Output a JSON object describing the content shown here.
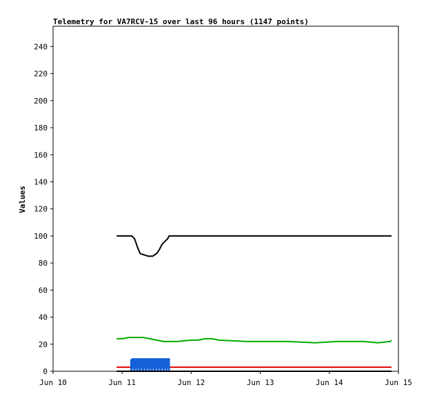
{
  "chart_data": {
    "type": "line",
    "title": "Telemetry for VA7RCV-15 over last 96 hours (1147 points)",
    "xlabel": "",
    "ylabel": "Values",
    "x_tick_labels": [
      "Jun 10",
      "Jun 11",
      "Jun 12",
      "Jun 13",
      "Jun 14",
      "Jun 15"
    ],
    "x_units": "days since Jun 10",
    "xlim": [
      0,
      5
    ],
    "ylim": [
      0,
      255
    ],
    "y_ticks": [
      0,
      20,
      40,
      60,
      80,
      100,
      120,
      140,
      160,
      180,
      200,
      220,
      240
    ],
    "grid": false,
    "legend": "none",
    "series": [
      {
        "color": "#000000",
        "style": "line",
        "x": [
          0.92,
          1.14,
          1.18,
          1.22,
          1.26,
          1.32,
          1.38,
          1.44,
          1.5,
          1.54,
          1.58,
          1.62,
          1.66,
          1.68,
          1.7,
          4.9
        ],
        "values": [
          100,
          100,
          98,
          92,
          87,
          86,
          85,
          85,
          87,
          90,
          94,
          96,
          98,
          100,
          100,
          100
        ]
      },
      {
        "color": "#00aa00",
        "style": "line",
        "x": [
          0.92,
          1.0,
          1.1,
          1.3,
          1.4,
          1.5,
          1.6,
          1.8,
          2.0,
          2.1,
          2.2,
          2.3,
          2.4,
          2.8,
          3.1,
          3.4,
          3.8,
          4.1,
          4.5,
          4.7,
          4.88,
          4.9
        ],
        "values": [
          24,
          24,
          25,
          25,
          24,
          23,
          22,
          22,
          23,
          23,
          24,
          24,
          23,
          22,
          22,
          22,
          21,
          22,
          22,
          21,
          22,
          23
        ]
      },
      {
        "color": "#dd0000",
        "style": "line",
        "x": [
          0.92,
          4.9
        ],
        "values": [
          3,
          3
        ]
      },
      {
        "color": "#1560d8",
        "style": "band",
        "x": [
          1.13,
          1.68
        ],
        "values": [
          0,
          9
        ]
      },
      {
        "color": "#000000",
        "style": "line",
        "x": [
          0.92,
          4.9
        ],
        "values": [
          0,
          0
        ]
      }
    ]
  }
}
